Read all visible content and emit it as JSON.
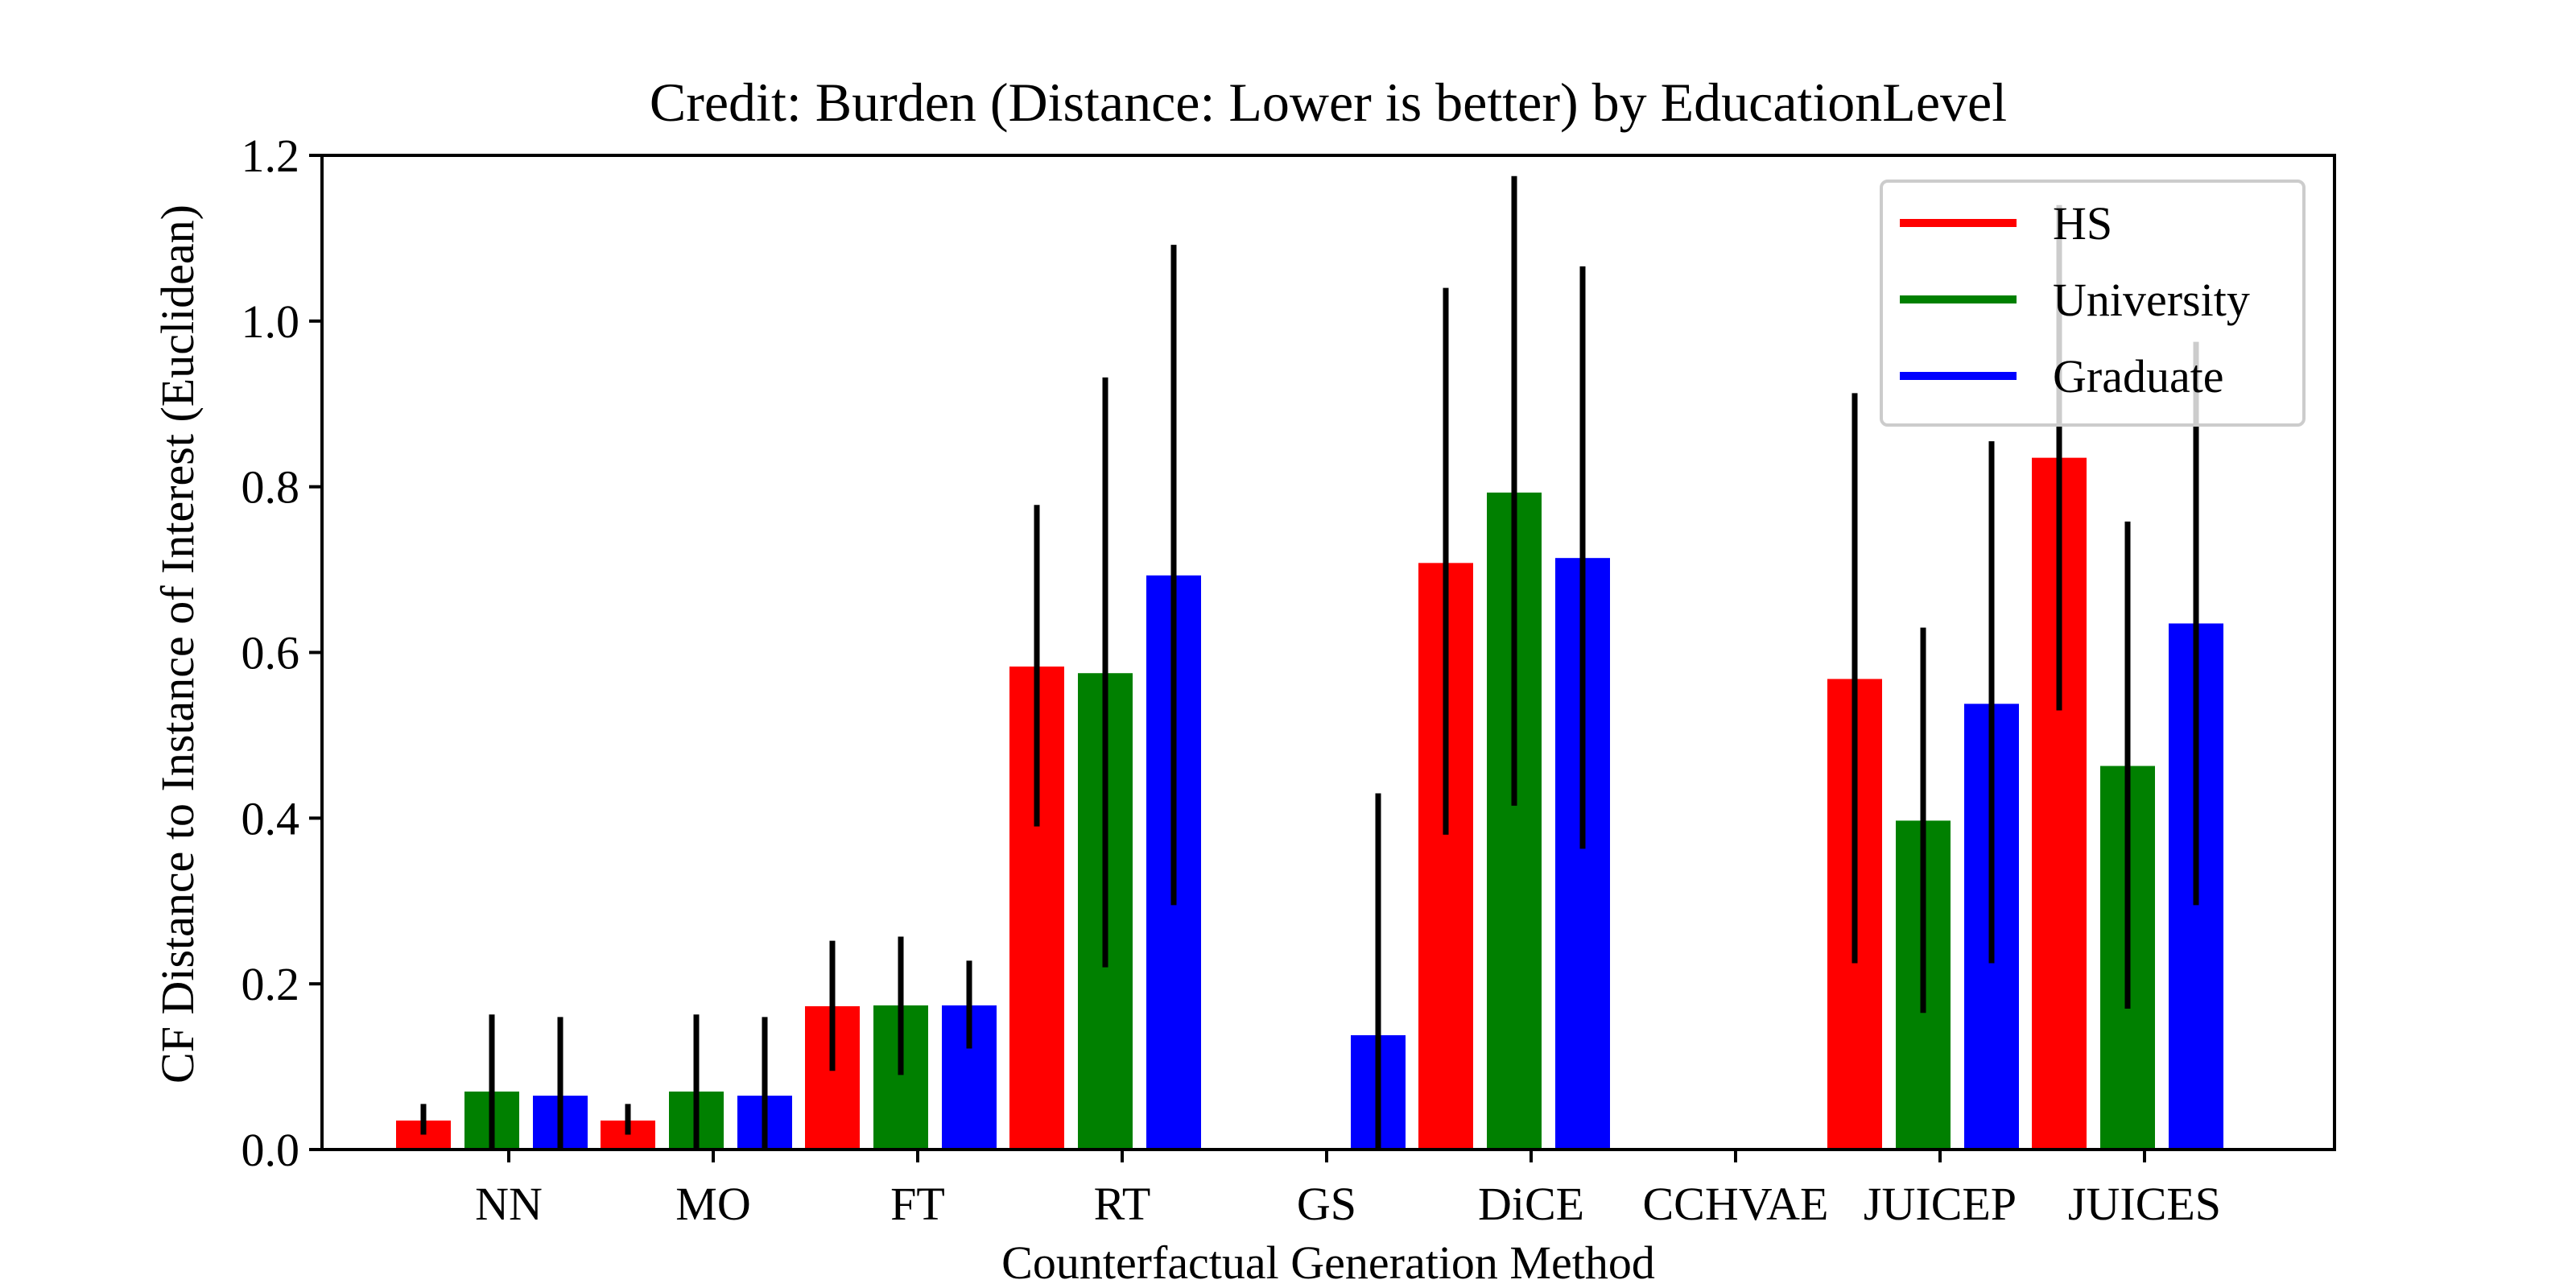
{
  "chart_data": {
    "type": "bar",
    "title": "Credit: Burden (Distance: Lower is better) by EducationLevel",
    "xlabel": "Counterfactual Generation Method",
    "ylabel": "CF Distance to Instance of Interest (Euclidean)",
    "ylim": [
      0,
      1.2
    ],
    "yticks": [
      "0.0",
      "0.2",
      "0.4",
      "0.6",
      "0.8",
      "1.0",
      "1.2"
    ],
    "categories": [
      "NN",
      "MO",
      "FT",
      "RT",
      "GS",
      "DiCE",
      "CCHVAE",
      "JUICEP",
      "JUICES"
    ],
    "legend_position": "top-right",
    "grid": false,
    "series": [
      {
        "name": "HS",
        "color": "#ff0000",
        "values": [
          0.035,
          0.035,
          0.173,
          0.583,
          null,
          0.708,
          null,
          0.568,
          0.835
        ],
        "err_low": [
          0.018,
          0.018,
          0.095,
          0.39,
          null,
          0.38,
          null,
          0.225,
          0.53
        ],
        "err_high": [
          0.055,
          0.055,
          0.252,
          0.778,
          null,
          1.04,
          null,
          0.913,
          1.14
        ]
      },
      {
        "name": "University",
        "color": "#008000",
        "values": [
          0.07,
          0.07,
          0.174,
          0.575,
          null,
          0.793,
          null,
          0.397,
          0.463
        ],
        "err_low": [
          0.0,
          0.0,
          0.09,
          0.22,
          null,
          0.415,
          null,
          0.165,
          0.17
        ],
        "err_high": [
          0.163,
          0.163,
          0.257,
          0.932,
          null,
          1.175,
          null,
          0.63,
          0.758
        ]
      },
      {
        "name": "Graduate",
        "color": "#0000ff",
        "values": [
          0.065,
          0.065,
          0.174,
          0.693,
          0.138,
          0.714,
          null,
          0.538,
          0.635
        ],
        "err_low": [
          0.0,
          0.0,
          0.122,
          0.295,
          0.0,
          0.363,
          null,
          0.225,
          0.295
        ],
        "err_high": [
          0.16,
          0.16,
          0.228,
          1.092,
          0.43,
          1.066,
          null,
          0.855,
          0.975
        ]
      }
    ]
  }
}
